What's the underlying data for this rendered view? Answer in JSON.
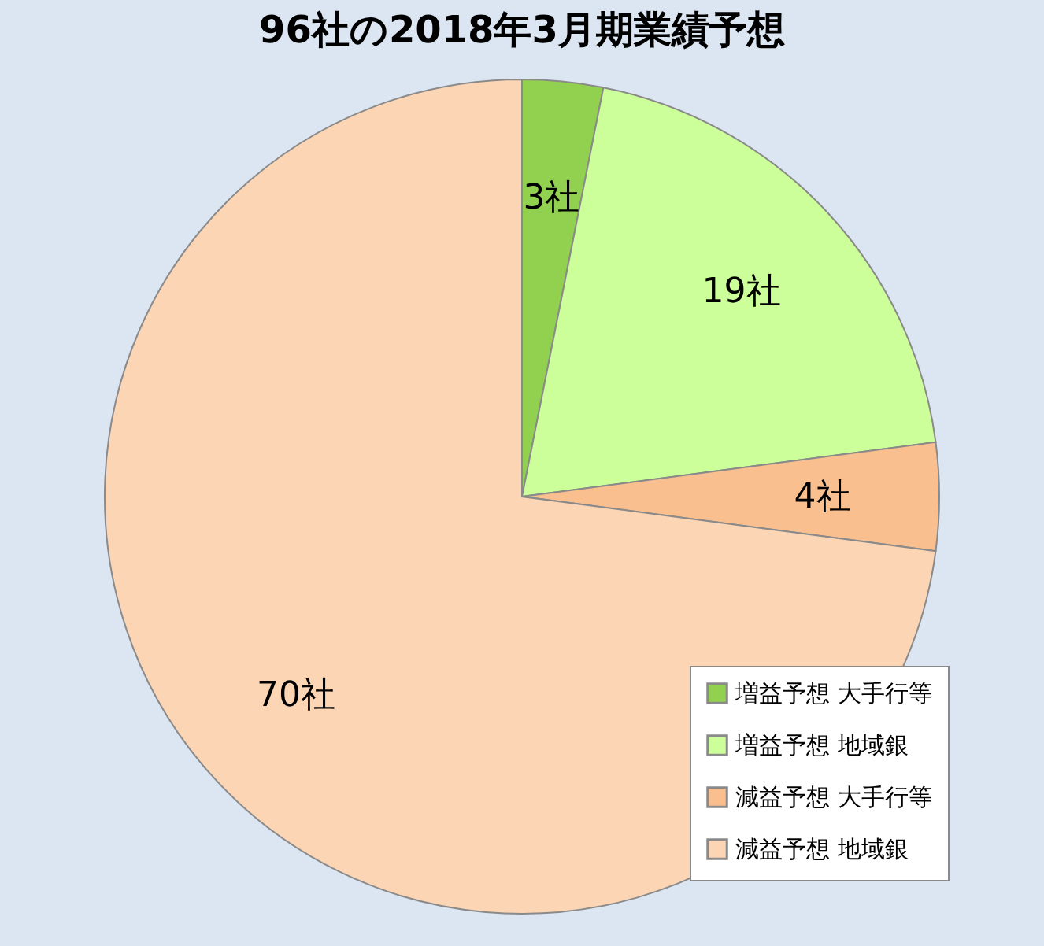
{
  "chart_data": {
    "type": "pie",
    "title": "96社の2018年3月期業績予想",
    "categories": [
      "増益予想 大手行等",
      "増益予想 地域銀",
      "減益予想 大手行等",
      "減益予想 地域銀"
    ],
    "values": [
      3,
      19,
      4,
      70
    ],
    "colors": [
      "#92d050",
      "#ccff99",
      "#fabf8f",
      "#fcd5b5"
    ],
    "value_labels": [
      "3社",
      "19社",
      "4社",
      "70社"
    ],
    "legend": "bottom right"
  }
}
